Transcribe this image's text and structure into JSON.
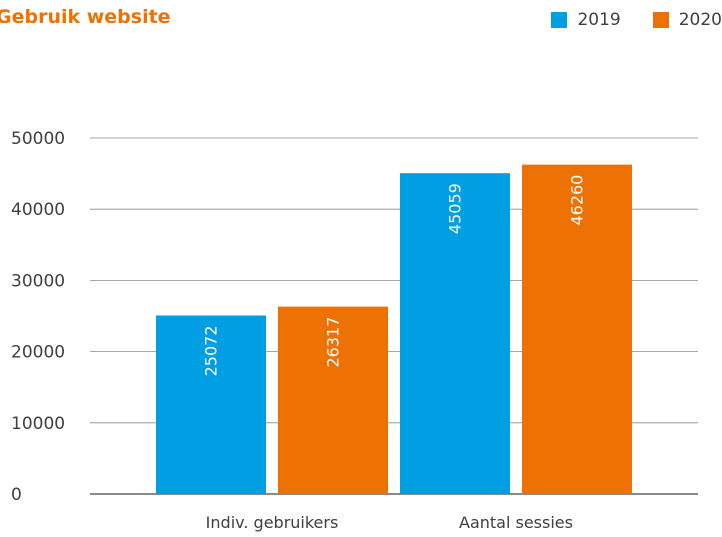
{
  "chart_data": {
    "type": "bar",
    "title": "Gebruik website",
    "categories": [
      "Indiv. gebruikers",
      "Aantal sessies"
    ],
    "series": [
      {
        "name": "2019",
        "values": [
          25072,
          45059
        ],
        "color": "#009fe3"
      },
      {
        "name": "2020",
        "values": [
          26317,
          46260
        ],
        "color": "#ee7203"
      }
    ],
    "ylim": [
      0,
      50000
    ],
    "yticks": [
      0,
      10000,
      20000,
      30000,
      40000,
      50000
    ],
    "grid": true,
    "legend_position": "top-right",
    "data_labels": "inside-bar-rotated"
  }
}
